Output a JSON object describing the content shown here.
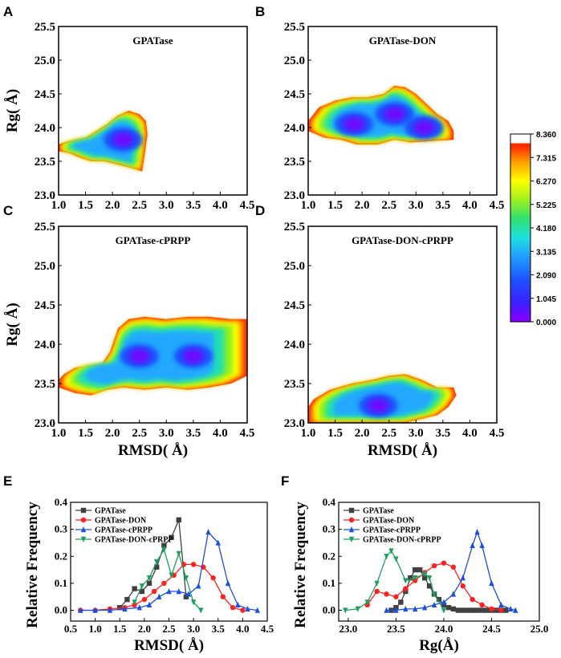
{
  "panel_letters": [
    "A",
    "B",
    "C",
    "D",
    "E",
    "F"
  ],
  "colorbar": {
    "ticks": [
      "8.360",
      "7.315",
      "6.270",
      "5.225",
      "4.180",
      "3.135",
      "2.090",
      "1.045",
      "0.000"
    ],
    "min": 0.0,
    "max": 8.36,
    "colors": [
      "#8b00ff",
      "#3b1fff",
      "#1f4fff",
      "#20a0ff",
      "#20e0e0",
      "#30e070",
      "#a0f020",
      "#ffff00",
      "#ffa000",
      "#ff3000",
      "#ffffff"
    ]
  },
  "chart_data": [
    {
      "panel": "A",
      "type": "heatmap",
      "title": "GPATase",
      "xlabel": "",
      "ylabel": "Rg( Å)",
      "xlim": [
        1.0,
        4.5
      ],
      "ylim": [
        23.0,
        25.5
      ],
      "xticks": [
        "1.0",
        "1.5",
        "2.0",
        "2.5",
        "3.0",
        "3.5",
        "4.0",
        "4.5"
      ],
      "yticks": [
        "23.0",
        "23.5",
        "24.0",
        "24.5",
        "25.0",
        "25.5"
      ],
      "region_outline": [
        [
          1.0,
          23.65
        ],
        [
          1.2,
          23.62
        ],
        [
          1.4,
          23.55
        ],
        [
          1.6,
          23.5
        ],
        [
          1.85,
          23.5
        ],
        [
          2.1,
          23.45
        ],
        [
          2.35,
          23.4
        ],
        [
          2.55,
          23.35
        ],
        [
          2.6,
          23.6
        ],
        [
          2.65,
          23.9
        ],
        [
          2.62,
          24.1
        ],
        [
          2.5,
          24.2
        ],
        [
          2.3,
          24.25
        ],
        [
          2.1,
          24.18
        ],
        [
          1.9,
          24.05
        ],
        [
          1.7,
          23.95
        ],
        [
          1.5,
          23.85
        ],
        [
          1.3,
          23.82
        ],
        [
          1.1,
          23.78
        ],
        [
          1.0,
          23.75
        ]
      ],
      "minima": [
        [
          2.2,
          23.82
        ]
      ]
    },
    {
      "panel": "B",
      "type": "heatmap",
      "title": "GPATase-DON",
      "xlabel": "",
      "ylabel": "",
      "xlim": [
        1.0,
        4.5
      ],
      "ylim": [
        23.0,
        25.5
      ],
      "xticks": [
        "1.0",
        "1.5",
        "2.0",
        "2.5",
        "3.0",
        "3.5",
        "4.0",
        "4.5"
      ],
      "yticks": [
        "23.0",
        "23.5",
        "24.0",
        "24.5",
        "25.0",
        "25.5"
      ],
      "region_outline": [
        [
          1.0,
          24.1
        ],
        [
          1.0,
          23.95
        ],
        [
          1.3,
          23.85
        ],
        [
          1.6,
          23.82
        ],
        [
          1.9,
          23.75
        ],
        [
          2.3,
          23.75
        ],
        [
          2.6,
          23.82
        ],
        [
          2.9,
          23.78
        ],
        [
          3.3,
          23.8
        ],
        [
          3.7,
          23.82
        ],
        [
          3.7,
          23.95
        ],
        [
          3.6,
          24.1
        ],
        [
          3.4,
          24.2
        ],
        [
          3.2,
          24.35
        ],
        [
          3.0,
          24.5
        ],
        [
          2.8,
          24.6
        ],
        [
          2.6,
          24.62
        ],
        [
          2.4,
          24.5
        ],
        [
          2.1,
          24.45
        ],
        [
          1.8,
          24.45
        ],
        [
          1.5,
          24.4
        ],
        [
          1.2,
          24.3
        ]
      ],
      "minima": [
        [
          1.85,
          24.05
        ],
        [
          2.6,
          24.2
        ],
        [
          3.15,
          24.0
        ]
      ]
    },
    {
      "panel": "C",
      "type": "heatmap",
      "title": "GPATase-cPRPP",
      "xlabel": "RMSD( Å)",
      "ylabel": "Rg( Å)",
      "xlim": [
        1.0,
        4.5
      ],
      "ylim": [
        23.0,
        25.5
      ],
      "xticks": [
        "1.0",
        "1.5",
        "2.0",
        "2.5",
        "3.0",
        "3.5",
        "4.0",
        "4.5"
      ],
      "yticks": [
        "23.0",
        "23.5",
        "24.0",
        "24.5",
        "25.0",
        "25.5"
      ],
      "region_outline": [
        [
          1.0,
          23.45
        ],
        [
          1.3,
          23.38
        ],
        [
          1.6,
          23.35
        ],
        [
          1.9,
          23.42
        ],
        [
          2.2,
          23.45
        ],
        [
          2.6,
          23.42
        ],
        [
          3.0,
          23.45
        ],
        [
          3.4,
          23.42
        ],
        [
          3.8,
          23.45
        ],
        [
          4.2,
          23.5
        ],
        [
          4.5,
          23.6
        ],
        [
          4.5,
          24.32
        ],
        [
          4.2,
          24.32
        ],
        [
          3.8,
          24.35
        ],
        [
          3.4,
          24.35
        ],
        [
          3.0,
          24.32
        ],
        [
          2.6,
          24.35
        ],
        [
          2.3,
          24.32
        ],
        [
          2.1,
          24.2
        ],
        [
          1.95,
          23.9
        ],
        [
          1.8,
          23.75
        ],
        [
          1.5,
          23.72
        ],
        [
          1.3,
          23.7
        ],
        [
          1.1,
          23.62
        ],
        [
          1.0,
          23.55
        ]
      ],
      "minima": [
        [
          2.5,
          23.85
        ],
        [
          3.5,
          23.85
        ]
      ]
    },
    {
      "panel": "D",
      "type": "heatmap",
      "title": "GPATase-DON-cPRPP",
      "xlabel": "RMSD( Å)",
      "ylabel": "",
      "xlim": [
        1.0,
        4.5
      ],
      "ylim": [
        23.0,
        25.5
      ],
      "xticks": [
        "1.0",
        "1.5",
        "2.0",
        "2.5",
        "3.0",
        "3.5",
        "4.0",
        "4.5"
      ],
      "yticks": [
        "23.0",
        "23.5",
        "24.0",
        "24.5",
        "25.0",
        "25.5"
      ],
      "region_outline": [
        [
          1.0,
          23.0
        ],
        [
          1.6,
          23.0
        ],
        [
          2.2,
          23.0
        ],
        [
          2.8,
          23.0
        ],
        [
          3.1,
          23.05
        ],
        [
          3.4,
          23.1
        ],
        [
          3.6,
          23.2
        ],
        [
          3.75,
          23.35
        ],
        [
          3.7,
          23.45
        ],
        [
          3.4,
          23.45
        ],
        [
          3.1,
          23.55
        ],
        [
          2.8,
          23.62
        ],
        [
          2.5,
          23.6
        ],
        [
          2.2,
          23.55
        ],
        [
          1.8,
          23.5
        ],
        [
          1.4,
          23.42
        ],
        [
          1.1,
          23.3
        ],
        [
          1.0,
          23.2
        ]
      ],
      "minima": [
        [
          2.3,
          23.22
        ]
      ]
    },
    {
      "panel": "E",
      "type": "line",
      "title": "",
      "xlabel": "RMSD( Å)",
      "ylabel": "Relative Frequency",
      "xlim": [
        0.5,
        4.5
      ],
      "ylim": [
        -0.04,
        0.4
      ],
      "xticks": [
        "0.5",
        "1.0",
        "1.5",
        "2.0",
        "2.5",
        "3.0",
        "3.5",
        "4.0",
        "4.5"
      ],
      "yticks": [
        "0.0",
        "0.1",
        "0.2",
        "0.3",
        "0.4"
      ],
      "legend": [
        "GPATase",
        "GPATase-DON",
        "GPATase-cPRPP",
        "GPATase-DON-cPRPP"
      ],
      "legend_position": "top-left",
      "series": [
        {
          "name": "GPATase",
          "color": "#404040",
          "marker": "square",
          "x": [
            1.5,
            1.65,
            1.8,
            1.95,
            2.1,
            2.25,
            2.4,
            2.55,
            2.7,
            2.85
          ],
          "y": [
            0.01,
            0.04,
            0.08,
            0.07,
            0.1,
            0.16,
            0.24,
            0.27,
            0.335,
            0.05
          ]
        },
        {
          "name": "GPATase-DON",
          "color": "#ff2020",
          "marker": "circle",
          "x": [
            0.7,
            1.0,
            1.3,
            1.6,
            1.8,
            2.0,
            2.2,
            2.4,
            2.6,
            2.8,
            3.0,
            3.2,
            3.4,
            3.6,
            3.8,
            4.0
          ],
          "y": [
            0.0,
            0.0,
            0.005,
            0.01,
            0.02,
            0.04,
            0.07,
            0.1,
            0.13,
            0.17,
            0.17,
            0.16,
            0.12,
            0.05,
            0.01,
            0.0
          ]
        },
        {
          "name": "GPATase-cPRPP",
          "color": "#1a4fe0",
          "marker": "triangle",
          "x": [
            0.7,
            1.0,
            1.3,
            1.6,
            1.9,
            2.1,
            2.3,
            2.5,
            2.7,
            2.9,
            3.1,
            3.3,
            3.5,
            3.7,
            3.9,
            4.1,
            4.3
          ],
          "y": [
            0.0,
            0.0,
            0.0,
            0.005,
            0.01,
            0.02,
            0.05,
            0.07,
            0.07,
            0.06,
            0.09,
            0.29,
            0.25,
            0.1,
            0.02,
            0.005,
            0.0
          ]
        },
        {
          "name": "GPATase-DON-cPRPP",
          "color": "#20a060",
          "marker": "triangle-down",
          "x": [
            1.8,
            1.95,
            2.1,
            2.25,
            2.4,
            2.55,
            2.7,
            2.85,
            3.0,
            3.15
          ],
          "y": [
            0.03,
            0.09,
            0.12,
            0.18,
            0.225,
            0.13,
            0.21,
            0.12,
            0.03,
            0.0
          ]
        }
      ]
    },
    {
      "panel": "F",
      "type": "line",
      "title": "",
      "xlabel": "Rg(Å)",
      "ylabel": "Relative Frequency",
      "xlim": [
        22.9,
        25.0
      ],
      "ylim": [
        -0.04,
        0.4
      ],
      "xticks": [
        "23.0",
        "23.5",
        "24.0",
        "24.5",
        "25.0"
      ],
      "yticks": [
        "0.0",
        "0.1",
        "0.2",
        "0.3",
        "0.4"
      ],
      "legend": [
        "GPATase",
        "GPATase-DON",
        "GPATase-cPRPP",
        "GPATase-DON-cPRPP"
      ],
      "legend_position": "top-left",
      "series": [
        {
          "name": "GPATase",
          "color": "#404040",
          "marker": "square",
          "x": [
            23.45,
            23.5,
            23.55,
            23.6,
            23.65,
            23.7,
            23.75,
            23.8,
            23.85,
            23.9,
            23.95,
            24.0,
            24.05,
            24.1,
            24.15,
            24.2,
            24.25,
            24.3,
            24.35,
            24.4,
            24.45,
            24.5,
            24.55,
            24.6,
            24.65
          ],
          "y": [
            0.0,
            0.01,
            0.03,
            0.07,
            0.12,
            0.15,
            0.15,
            0.12,
            0.09,
            0.06,
            0.04,
            0.02,
            0.01,
            0.005,
            0.0,
            0.0,
            0.0,
            0.0,
            0.0,
            0.0,
            0.0,
            0.0,
            0.0,
            0.0,
            0.0
          ]
        },
        {
          "name": "GPATase-DON",
          "color": "#ff2020",
          "marker": "circle",
          "x": [
            23.2,
            23.3,
            23.4,
            23.5,
            23.6,
            23.7,
            23.8,
            23.9,
            24.0,
            24.1,
            24.2,
            24.3,
            24.4,
            24.5,
            24.6
          ],
          "y": [
            0.02,
            0.07,
            0.06,
            0.05,
            0.08,
            0.11,
            0.14,
            0.165,
            0.175,
            0.16,
            0.09,
            0.04,
            0.02,
            0.005,
            0.0
          ]
        },
        {
          "name": "GPATase-cPRPP",
          "color": "#1a4fe0",
          "marker": "triangle",
          "x": [
            23.4,
            23.5,
            23.6,
            23.7,
            23.8,
            23.9,
            24.0,
            24.1,
            24.2,
            24.3,
            24.35,
            24.4,
            24.5,
            24.6,
            24.7,
            24.75
          ],
          "y": [
            0.0,
            0.0,
            0.005,
            0.005,
            0.01,
            0.02,
            0.03,
            0.06,
            0.12,
            0.24,
            0.29,
            0.24,
            0.1,
            0.02,
            0.005,
            0.0
          ]
        },
        {
          "name": "GPATase-DON-cPRPP",
          "color": "#20a060",
          "marker": "triangle-down",
          "x": [
            22.97,
            23.1,
            23.2,
            23.3,
            23.4,
            23.45,
            23.5,
            23.6,
            23.7,
            23.8,
            23.85,
            23.9,
            24.0
          ],
          "y": [
            0.0,
            0.005,
            0.03,
            0.1,
            0.2,
            0.22,
            0.19,
            0.11,
            0.12,
            0.135,
            0.12,
            0.06,
            0.0
          ]
        }
      ]
    }
  ]
}
